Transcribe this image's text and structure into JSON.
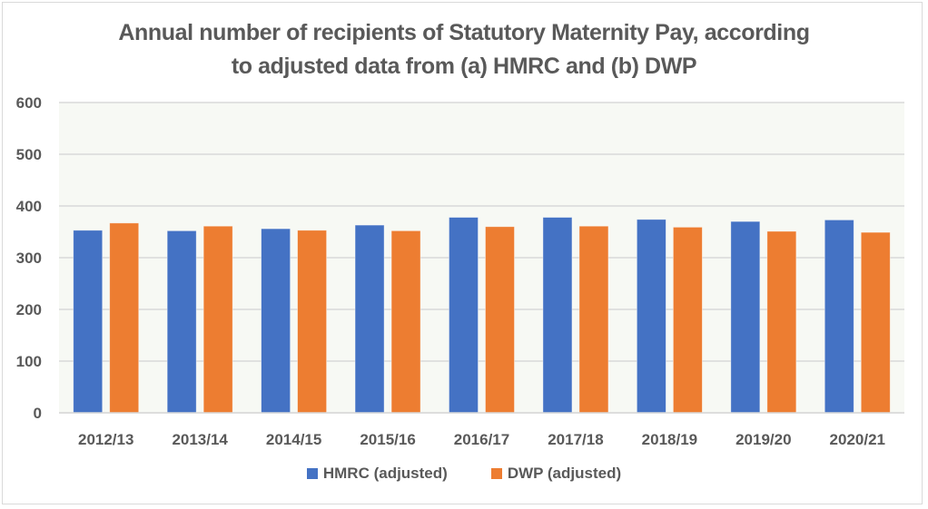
{
  "chart_data": {
    "type": "bar",
    "title_lines": [
      "Annual number of recipients of Statutory Maternity Pay, according",
      "to adjusted data from (a) HMRC and (b) DWP"
    ],
    "xlabel": "",
    "ylabel": "",
    "categories": [
      "2012/13",
      "2013/14",
      "2014/15",
      "2015/16",
      "2016/17",
      "2017/18",
      "2018/19",
      "2019/20",
      "2020/21"
    ],
    "series": [
      {
        "name": "HMRC (adjusted)",
        "color": "#4472C4",
        "values": [
          353,
          352,
          356,
          363,
          378,
          378,
          374,
          370,
          373
        ]
      },
      {
        "name": "DWP (adjusted)",
        "color": "#ED7D31",
        "values": [
          367,
          361,
          353,
          352,
          360,
          361,
          359,
          351,
          349
        ]
      }
    ],
    "ylim": [
      0,
      600
    ],
    "yticks": [
      0,
      100,
      200,
      300,
      400,
      500,
      600
    ],
    "grid": true,
    "legend_position": "bottom",
    "plot_background": "#F7F9F4"
  }
}
